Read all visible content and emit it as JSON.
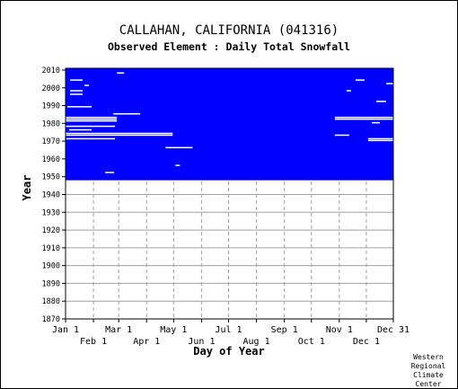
{
  "chart_data": {
    "type": "heatmap",
    "title": "CALLAHAN, CALIFORNIA   (041316)",
    "subtitle": "Observed Element : Daily Total Snowfall",
    "xlabel": "Day of Year",
    "ylabel": "Year",
    "ylim": [
      1870,
      2011
    ],
    "xlim": [
      1,
      365
    ],
    "y_ticks": [
      1870,
      1880,
      1890,
      1900,
      1910,
      1920,
      1930,
      1940,
      1950,
      1960,
      1970,
      1980,
      1990,
      2000,
      2010
    ],
    "x_ticks_upper": [
      {
        "label": "Jan 1",
        "day": 1
      },
      {
        "label": "Mar 1",
        "day": 60
      },
      {
        "label": "May 1",
        "day": 121
      },
      {
        "label": "Jul 1",
        "day": 182
      },
      {
        "label": "Sep 1",
        "day": 244
      },
      {
        "label": "Nov 1",
        "day": 305
      },
      {
        "label": "Dec 31",
        "day": 365
      }
    ],
    "x_ticks_lower": [
      {
        "label": "Feb 1",
        "day": 32
      },
      {
        "label": "Apr 1",
        "day": 91
      },
      {
        "label": "Jun 1",
        "day": 152
      },
      {
        "label": "Aug 1",
        "day": 213
      },
      {
        "label": "Oct 1",
        "day": 274
      },
      {
        "label": "Dec 1",
        "day": 335
      }
    ],
    "data_color": "#0000ff",
    "grid": true,
    "record_start_year": 1948,
    "record_end_year": 2010,
    "missing_segments": [
      {
        "year": 2008,
        "start_day": 58,
        "end_day": 66
      },
      {
        "year": 2004,
        "start_day": 6,
        "end_day": 20
      },
      {
        "year": 2001,
        "start_day": 22,
        "end_day": 27
      },
      {
        "year": 1998,
        "start_day": 6,
        "end_day": 20
      },
      {
        "year": 1996,
        "start_day": 6,
        "end_day": 20
      },
      {
        "year": 1989,
        "start_day": 3,
        "end_day": 30
      },
      {
        "year": 1985,
        "start_day": 54,
        "end_day": 84
      },
      {
        "year": 1983,
        "start_day": 1,
        "end_day": 58
      },
      {
        "year": 1982,
        "start_day": 1,
        "end_day": 58
      },
      {
        "year": 1981,
        "start_day": 1,
        "end_day": 58
      },
      {
        "year": 1978,
        "start_day": 1,
        "end_day": 56
      },
      {
        "year": 1976,
        "start_day": 5,
        "end_day": 30
      },
      {
        "year": 1974,
        "start_day": 1,
        "end_day": 120
      },
      {
        "year": 1973,
        "start_day": 1,
        "end_day": 120
      },
      {
        "year": 1971,
        "start_day": 2,
        "end_day": 56
      },
      {
        "year": 1966,
        "start_day": 112,
        "end_day": 142
      },
      {
        "year": 1952,
        "start_day": 45,
        "end_day": 55
      },
      {
        "year": 1956,
        "start_day": 123,
        "end_day": 128
      },
      {
        "year": 1983,
        "start_day": 300,
        "end_day": 365
      },
      {
        "year": 1982,
        "start_day": 300,
        "end_day": 365
      },
      {
        "year": 1973,
        "start_day": 300,
        "end_day": 316
      },
      {
        "year": 1971,
        "start_day": 337,
        "end_day": 365
      },
      {
        "year": 1970,
        "start_day": 337,
        "end_day": 365
      },
      {
        "year": 1992,
        "start_day": 346,
        "end_day": 357
      },
      {
        "year": 2004,
        "start_day": 323,
        "end_day": 333
      },
      {
        "year": 2002,
        "start_day": 357,
        "end_day": 365
      },
      {
        "year": 1998,
        "start_day": 313,
        "end_day": 318
      },
      {
        "year": 1980,
        "start_day": 341,
        "end_day": 350
      }
    ]
  },
  "credit": [
    "Western",
    "Regional",
    "Climate",
    "Center"
  ]
}
